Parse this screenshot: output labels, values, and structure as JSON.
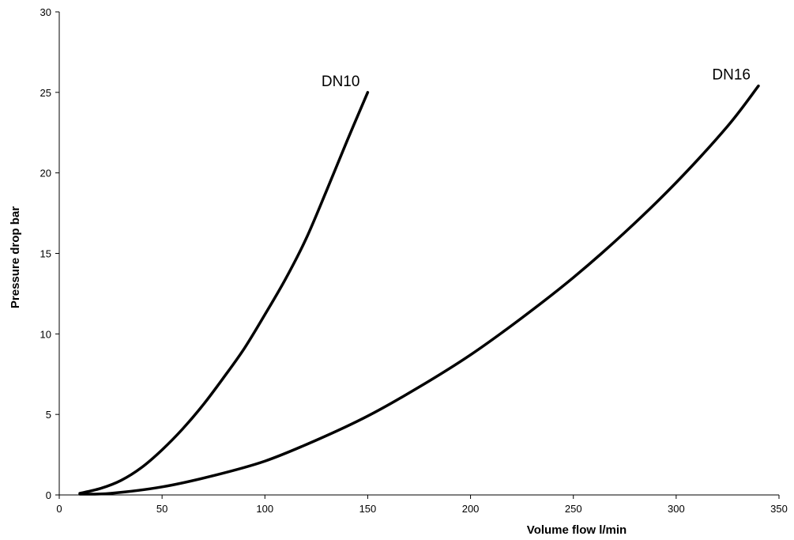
{
  "chart_data": {
    "type": "line",
    "title": "",
    "xlabel": "Volume flow l/min",
    "ylabel": "Pressure drop bar",
    "xlim": [
      0,
      350
    ],
    "ylim": [
      0,
      30
    ],
    "x_ticks": [
      0,
      50,
      100,
      150,
      200,
      250,
      300,
      350
    ],
    "y_ticks": [
      0,
      5,
      10,
      15,
      20,
      25,
      30
    ],
    "x_tick_labels": [
      "0",
      "50",
      "100",
      "150",
      "200",
      "250",
      "300",
      "350"
    ],
    "y_tick_labels": [
      "0",
      "5",
      "10",
      "15",
      "20",
      "25",
      "30"
    ],
    "grid": false,
    "legend": "none",
    "line_color": "#000000",
    "series": [
      {
        "name": "DN10",
        "label_position": "end-top-left",
        "points": [
          [
            10,
            0.1
          ],
          [
            20,
            0.4
          ],
          [
            30,
            0.9
          ],
          [
            40,
            1.7
          ],
          [
            50,
            2.8
          ],
          [
            60,
            4.1
          ],
          [
            70,
            5.6
          ],
          [
            80,
            7.3
          ],
          [
            90,
            9.1
          ],
          [
            100,
            11.2
          ],
          [
            110,
            13.4
          ],
          [
            120,
            15.9
          ],
          [
            130,
            18.9
          ],
          [
            140,
            22.0
          ],
          [
            150,
            25.0
          ]
        ]
      },
      {
        "name": "DN16",
        "label_position": "end-top-left",
        "points": [
          [
            10,
            0.05
          ],
          [
            25,
            0.1
          ],
          [
            50,
            0.5
          ],
          [
            75,
            1.2
          ],
          [
            100,
            2.1
          ],
          [
            125,
            3.4
          ],
          [
            150,
            4.9
          ],
          [
            175,
            6.7
          ],
          [
            200,
            8.7
          ],
          [
            225,
            11.0
          ],
          [
            250,
            13.5
          ],
          [
            275,
            16.3
          ],
          [
            300,
            19.4
          ],
          [
            325,
            22.9
          ],
          [
            340,
            25.4
          ]
        ]
      }
    ]
  }
}
